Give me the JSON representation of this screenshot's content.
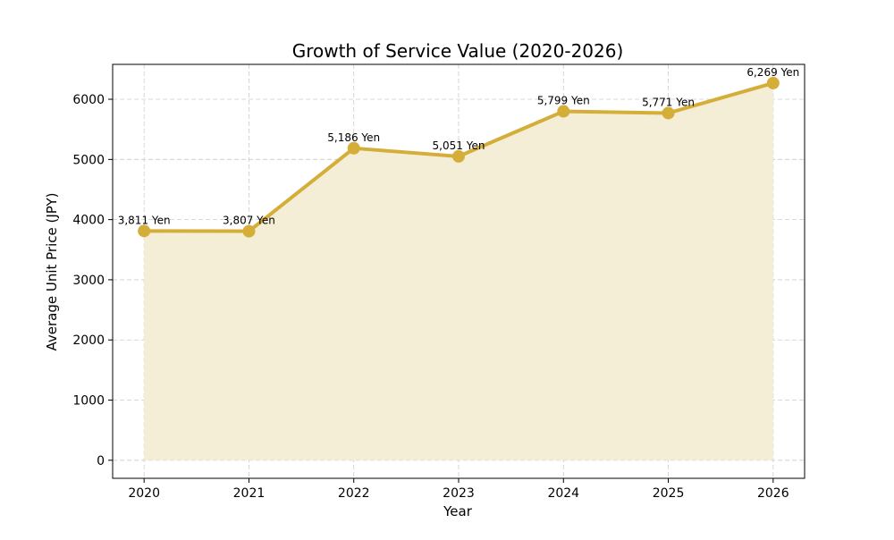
{
  "chart_data": {
    "type": "area",
    "title": "Growth of Service Value (2020-2026)",
    "xlabel": "Year",
    "ylabel": "Average Unit Price (JPY)",
    "x": [
      2020,
      2021,
      2022,
      2023,
      2024,
      2025,
      2026
    ],
    "x_tick_labels": [
      "2020",
      "2021",
      "2022",
      "2023",
      "2024",
      "2025",
      "2026"
    ],
    "xlim": [
      2019.7,
      2026.3
    ],
    "ylim": [
      -300,
      6580
    ],
    "y_ticks": [
      0,
      1000,
      2000,
      3000,
      4000,
      5000,
      6000
    ],
    "y_tick_labels": [
      "0",
      "1000",
      "2000",
      "3000",
      "4000",
      "5000",
      "6000"
    ],
    "grid": true,
    "series": [
      {
        "name": "Average Unit Price",
        "values": [
          3811,
          3807,
          5186,
          5051,
          5799,
          5771,
          6269
        ],
        "data_labels": [
          "3,811 Yen",
          "3,807 Yen",
          "5,186 Yen",
          "5,051 Yen",
          "5,799 Yen",
          "5,771 Yen",
          "6,269 Yen"
        ]
      }
    ],
    "colors": {
      "line": "#d4ae38",
      "fill": "#f5eed7",
      "grid": "#cccccc",
      "frame": "#000000"
    }
  }
}
